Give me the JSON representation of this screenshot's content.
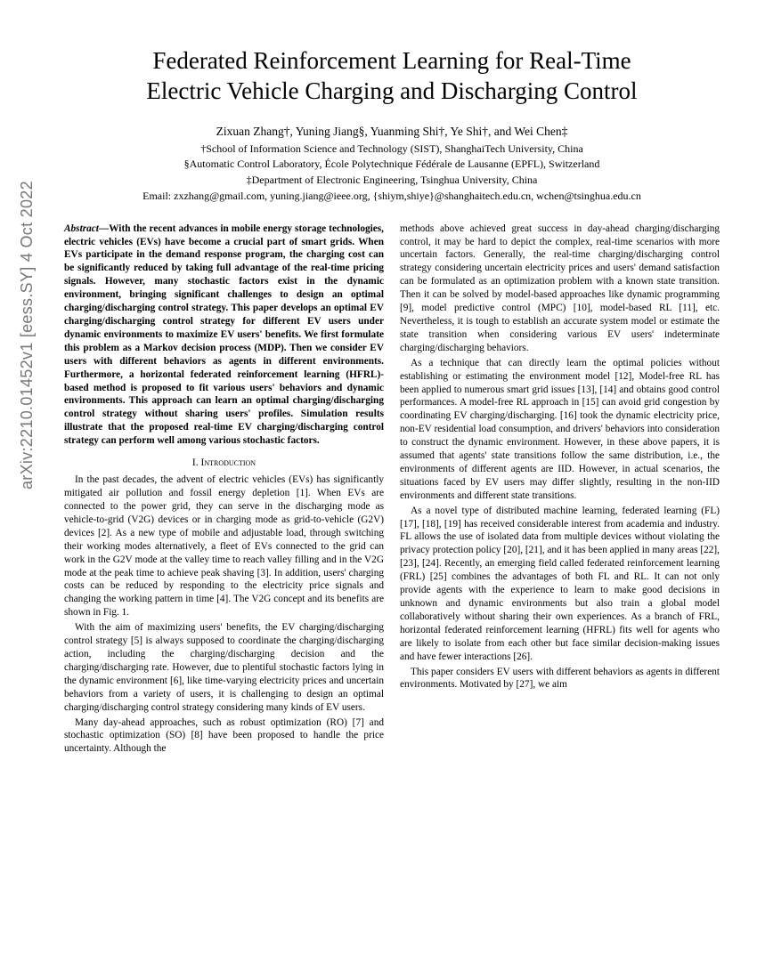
{
  "arxiv_tag": "arXiv:2210.01452v1  [eess.SY]  4 Oct 2022",
  "title_line1": "Federated Reinforcement Learning for Real-Time",
  "title_line2": "Electric Vehicle Charging and Discharging Control",
  "authors": "Zixuan Zhang†, Yuning Jiang§, Yuanming Shi†, Ye Shi†, and Wei Chen‡",
  "affil1": "†School of Information Science and Technology (SIST), ShanghaiTech University, China",
  "affil2": "§Automatic Control Laboratory, École Polytechnique Fédérale de Lausanne (EPFL), Switzerland",
  "affil3": "‡Department of Electronic Engineering, Tsinghua University, China",
  "email": "Email: zxzhang@gmail.com, yuning.jiang@ieee.org, {shiym,shiye}@shanghaitech.edu.cn, wchen@tsinghua.edu.cn",
  "abstract_label": "Abstract—",
  "abstract": "With the recent advances in mobile energy storage technologies, electric vehicles (EVs) have become a crucial part of smart grids. When EVs participate in the demand response program, the charging cost can be significantly reduced by taking full advantage of the real-time pricing signals. However, many stochastic factors exist in the dynamic environment, bringing significant challenges to design an optimal charging/discharging control strategy. This paper develops an optimal EV charging/discharging control strategy for different EV users under dynamic environments to maximize EV users' benefits. We first formulate this problem as a Markov decision process (MDP). Then we consider EV users with different behaviors as agents in different environments. Furthermore, a horizontal federated reinforcement learning (HFRL)-based method is proposed to fit various users' behaviors and dynamic environments. This approach can learn an optimal charging/discharging control strategy without sharing users' profiles. Simulation results illustrate that the proposed real-time EV charging/discharging control strategy can perform well among various stochastic factors.",
  "section1": "I. Introduction",
  "l_p1": "In the past decades, the advent of electric vehicles (EVs) has significantly mitigated air pollution and fossil energy depletion [1]. When EVs are connected to the power grid, they can serve in the discharging mode as vehicle-to-grid (V2G) devices or in charging mode as grid-to-vehicle (G2V) devices [2]. As a new type of mobile and adjustable load, through switching their working modes alternatively, a fleet of EVs connected to the grid can work in the G2V mode at the valley time to reach valley filling and in the V2G mode at the peak time to achieve peak shaving [3]. In addition, users' charging costs can be reduced by responding to the electricity price signals and changing the working pattern in time [4]. The V2G concept and its benefits are shown in Fig. 1.",
  "l_p2": "With the aim of maximizing users' benefits, the EV charging/discharging control strategy [5] is always supposed to coordinate the charging/discharging action, including the charging/discharging decision and the charging/discharging rate. However, due to plentiful stochastic factors lying in the dynamic environment [6], like time-varying electricity prices and uncertain behaviors from a variety of users, it is challenging to design an optimal charging/discharging control strategy considering many kinds of EV users.",
  "l_p3": "Many day-ahead approaches, such as robust optimization (RO) [7] and stochastic optimization (SO) [8] have been proposed to handle the price uncertainty. Although the",
  "r_p1": "methods above achieved great success in day-ahead charging/discharging control, it may be hard to depict the complex, real-time scenarios with more uncertain factors. Generally, the real-time charging/discharging control strategy considering uncertain electricity prices and users' demand satisfaction can be formulated as an optimization problem with a known state transition. Then it can be solved by model-based approaches like dynamic programming [9], model predictive control (MPC) [10], model-based RL [11], etc. Nevertheless, it is tough to establish an accurate system model or estimate the state transition when considering various EV users' indeterminate charging/discharging behaviors.",
  "r_p2": "As a technique that can directly learn the optimal policies without establishing or estimating the environment model [12], Model-free RL has been applied to numerous smart grid issues [13], [14] and obtains good control performances. A model-free RL approach in [15] can avoid grid congestion by coordinating EV charging/discharging. [16] took the dynamic electricity price, non-EV residential load consumption, and drivers' behaviors into consideration to construct the dynamic environment. However, in these above papers, it is assumed that agents' state transitions follow the same distribution, i.e., the environments of different agents are IID. However, in actual scenarios, the situations faced by EV users may differ slightly, resulting in the non-IID environments and different state transitions.",
  "r_p3": "As a novel type of distributed machine learning, federated learning (FL) [17], [18], [19] has received considerable interest from academia and industry. FL allows the use of isolated data from multiple devices without violating the privacy protection policy [20], [21], and it has been applied in many areas [22], [23], [24]. Recently, an emerging field called federated reinforcement learning (FRL) [25] combines the advantages of both FL and RL. It can not only provide agents with the experience to learn to make good decisions in unknown and dynamic environments but also train a global model collaboratively without sharing their own experiences. As a branch of FRL, horizontal federated reinforcement learning (HFRL) fits well for agents who are likely to isolate from each other but face similar decision-making issues and have fewer interactions [26].",
  "r_p4": "This paper considers EV users with different behaviors as agents in different environments. Motivated by [27], we aim"
}
